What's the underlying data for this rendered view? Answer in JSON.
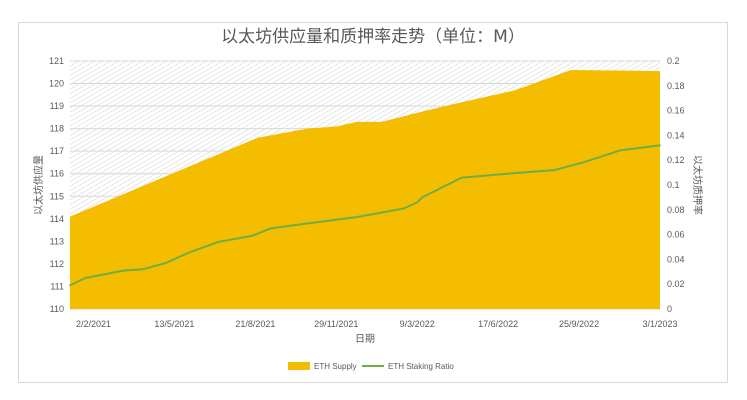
{
  "chart_data": {
    "type": "area+line",
    "title": "以太坊供应量和质押率走势（单位：M）",
    "xlabel": "日期",
    "ylabel_left": "以太坊供应量",
    "ylabel_right": "以太坊质押率",
    "xlim": [
      "4/1/2021",
      "3/1/2023"
    ],
    "x_ticks": [
      "2/2/2021",
      "13/5/2021",
      "21/8/2021",
      "29/11/2021",
      "9/3/2022",
      "17/6/2022",
      "25/9/2022",
      "3/1/2023"
    ],
    "ylim_left": [
      110,
      121
    ],
    "y_ticks_left": [
      "110",
      "111",
      "112",
      "113",
      "114",
      "115",
      "116",
      "117",
      "118",
      "119",
      "120",
      "121"
    ],
    "ylim_right": [
      0,
      0.2
    ],
    "y_ticks_right": [
      "0",
      "0.02",
      "0.04",
      "0.06",
      "0.08",
      "0.1",
      "0.12",
      "0.14",
      "0.16",
      "0.18",
      "0.2"
    ],
    "grid": true,
    "legend": "bottom",
    "series": [
      {
        "name": "ETH Supply",
        "type": "area",
        "axis": "left",
        "color": "#f5bd00",
        "points": [
          [
            "4/1/2021",
            114.1
          ],
          [
            "24/8/2021",
            117.6
          ],
          [
            "24/10/2021",
            118.0
          ],
          [
            "30/11/2021",
            118.1
          ],
          [
            "24/12/2021",
            118.3
          ],
          [
            "24/1/2022",
            118.3
          ],
          [
            "20/3/2022",
            118.8
          ],
          [
            "25/4/2022",
            119.1
          ],
          [
            "8/7/2022",
            119.7
          ],
          [
            "15/9/2022",
            120.6
          ],
          [
            "3/1/2023",
            120.55
          ]
        ]
      },
      {
        "name": "ETH Staking Ratio",
        "type": "line",
        "axis": "right",
        "color": "#70ad47",
        "points": [
          [
            "4/1/2021",
            0.019
          ],
          [
            "23/1/2021",
            0.025
          ],
          [
            "11/3/2021",
            0.031
          ],
          [
            "4/4/2021",
            0.032
          ],
          [
            "2/5/2021",
            0.037
          ],
          [
            "29/5/2021",
            0.045
          ],
          [
            "6/7/2021",
            0.054
          ],
          [
            "17/8/2021",
            0.059
          ],
          [
            "9/9/2021",
            0.065
          ],
          [
            "25/10/2021",
            0.069
          ],
          [
            "23/12/2021",
            0.074
          ],
          [
            "20/2/2022",
            0.081
          ],
          [
            "9/3/2022",
            0.086
          ],
          [
            "15/3/2022",
            0.09
          ],
          [
            "3/5/2022",
            0.106
          ],
          [
            "15/7/2022",
            0.11
          ],
          [
            "25/8/2022",
            0.112
          ],
          [
            "29/9/2022",
            0.118
          ],
          [
            "15/11/2022",
            0.128
          ],
          [
            "3/1/2023",
            0.132
          ]
        ]
      }
    ]
  }
}
